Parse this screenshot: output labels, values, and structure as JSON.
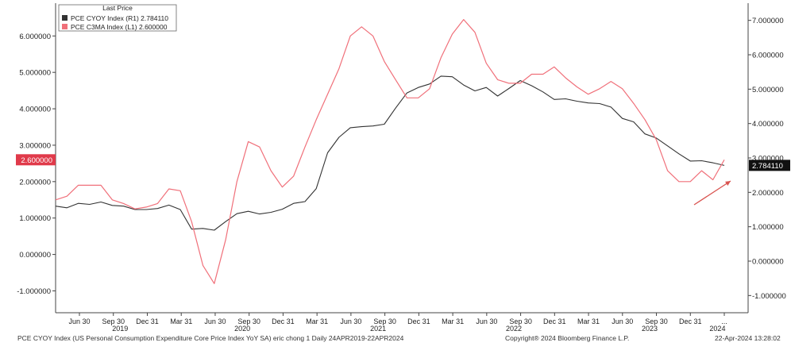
{
  "chart_data": {
    "type": "line",
    "legend": {
      "header": "Last Price",
      "placement": "top-left",
      "entries": [
        {
          "series_index": 0,
          "label": "PCE CYOY Index  (R1)",
          "value": "2.784110"
        },
        {
          "series_index": 1,
          "label": "PCE C3MA Index  (L1)",
          "value": "2.600000"
        }
      ]
    },
    "x_tick_labels": [
      "Jun 30",
      "Sep 30",
      "Dec 31",
      "Mar 31",
      "Jun 30",
      "Sep 30",
      "Dec 31",
      "Mar 31",
      "Jun 30",
      "Sep 30",
      "Dec 31",
      "Mar 31",
      "Jun 30",
      "Sep 30",
      "Dec 31",
      "Mar 31",
      "Jun 30",
      "Sep 30",
      "Dec 31",
      "..."
    ],
    "x_year_labels": [
      "2019",
      "2020",
      "2021",
      "2022",
      "2023",
      "2024"
    ],
    "left_axis": {
      "ticks": [
        "6.000000",
        "5.000000",
        "4.000000",
        "3.000000",
        "2.000000",
        "1.000000",
        "0.000000",
        "-1.000000"
      ],
      "range": [
        -1.6,
        6.9
      ]
    },
    "right_axis": {
      "ticks": [
        "7.000000",
        "6.000000",
        "5.000000",
        "4.000000",
        "3.000000",
        "2.000000",
        "1.000000",
        "0.000000",
        "-1.000000"
      ],
      "range": [
        -1.5,
        7.5
      ]
    },
    "grid": false,
    "series": [
      {
        "name": "PCE CYOY Index",
        "axis": "right",
        "color": "#333333",
        "last_value_label": "2.784110",
        "values": [
          1.6,
          1.55,
          1.68,
          1.65,
          1.72,
          1.62,
          1.6,
          1.5,
          1.5,
          1.53,
          1.63,
          1.5,
          0.93,
          0.95,
          0.9,
          1.15,
          1.38,
          1.45,
          1.37,
          1.42,
          1.51,
          1.68,
          1.73,
          2.11,
          3.15,
          3.6,
          3.88,
          3.91,
          3.93,
          3.98,
          4.45,
          4.89,
          5.05,
          5.15,
          5.38,
          5.36,
          5.12,
          4.95,
          5.05,
          4.8,
          5.02,
          5.25,
          5.1,
          4.92,
          4.7,
          4.72,
          4.65,
          4.6,
          4.58,
          4.48,
          4.15,
          4.05,
          3.7,
          3.58,
          3.35,
          3.12,
          2.91,
          2.92,
          2.86,
          2.784
        ]
      },
      {
        "name": "PCE C3MA Index",
        "axis": "left",
        "color": "#f0707a",
        "last_value_label": "2.600000",
        "values": [
          1.5,
          1.6,
          1.9,
          1.9,
          1.9,
          1.5,
          1.4,
          1.25,
          1.3,
          1.4,
          1.8,
          1.75,
          0.9,
          -0.3,
          -0.8,
          0.4,
          2.0,
          3.1,
          2.95,
          2.3,
          1.85,
          2.15,
          2.95,
          3.7,
          4.4,
          5.1,
          6.0,
          6.25,
          6.0,
          5.3,
          4.8,
          4.3,
          4.3,
          4.55,
          5.4,
          6.05,
          6.45,
          6.1,
          5.25,
          4.8,
          4.7,
          4.7,
          4.95,
          4.95,
          5.15,
          4.85,
          4.6,
          4.4,
          4.55,
          4.75,
          4.55,
          4.15,
          3.7,
          3.15,
          2.3,
          2.0,
          2.0,
          2.3,
          2.05,
          2.6
        ]
      }
    ],
    "annotation": {
      "type": "arrow",
      "color": "#d9534f",
      "direction": "up-right"
    }
  },
  "footer": {
    "left": "PCE CYOY Index (US Personal Consumption Expenditure Core Price Index YoY SA) eric chong 1  Daily 24APR2019-22APR2024",
    "center": "Copyright® 2024 Bloomberg Finance L.P.",
    "right": "22-Apr-2024 13:28:02"
  }
}
